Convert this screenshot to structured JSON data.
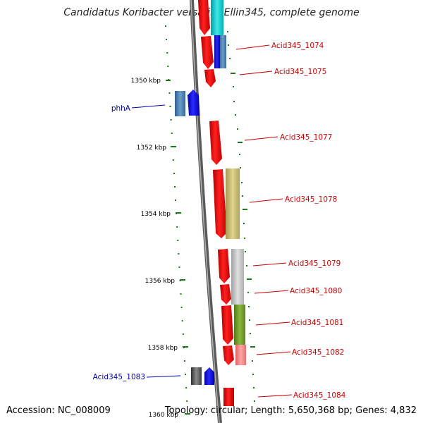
{
  "title": "Candidatus Koribacter versatilis Ellin345, complete genome",
  "footer": {
    "accession": "Accession: NC_008009",
    "topology": "Topology: circular; Length: 5,650,368 bp; Genes: 4,832"
  },
  "colors": {
    "backbone": "#888888",
    "tick": "#1a7a1a",
    "label_red": "#cc0000",
    "label_blue": "#0000aa"
  },
  "ticks": [
    {
      "label": "1350 kbp"
    },
    {
      "label": "1352 kbp"
    },
    {
      "label": "1354 kbp"
    },
    {
      "label": "1356 kbp"
    },
    {
      "label": "1358 kbp"
    },
    {
      "label": "1360 kbp"
    }
  ],
  "gene_labels": [
    {
      "text": "Acid345_1074",
      "color": "#cc0000"
    },
    {
      "text": "Acid345_1075",
      "color": "#cc0000"
    },
    {
      "text": "phhA",
      "color": "#0000aa"
    },
    {
      "text": "Acid345_1077",
      "color": "#cc0000"
    },
    {
      "text": "Acid345_1078",
      "color": "#cc0000"
    },
    {
      "text": "Acid345_1079",
      "color": "#cc0000"
    },
    {
      "text": "Acid345_1080",
      "color": "#cc0000"
    },
    {
      "text": "Acid345_1081",
      "color": "#cc0000"
    },
    {
      "text": "Acid345_1082",
      "color": "#cc0000"
    },
    {
      "text": "Acid345_1083",
      "color": "#0000aa"
    },
    {
      "text": "Acid345_1084",
      "color": "#cc0000"
    }
  ]
}
